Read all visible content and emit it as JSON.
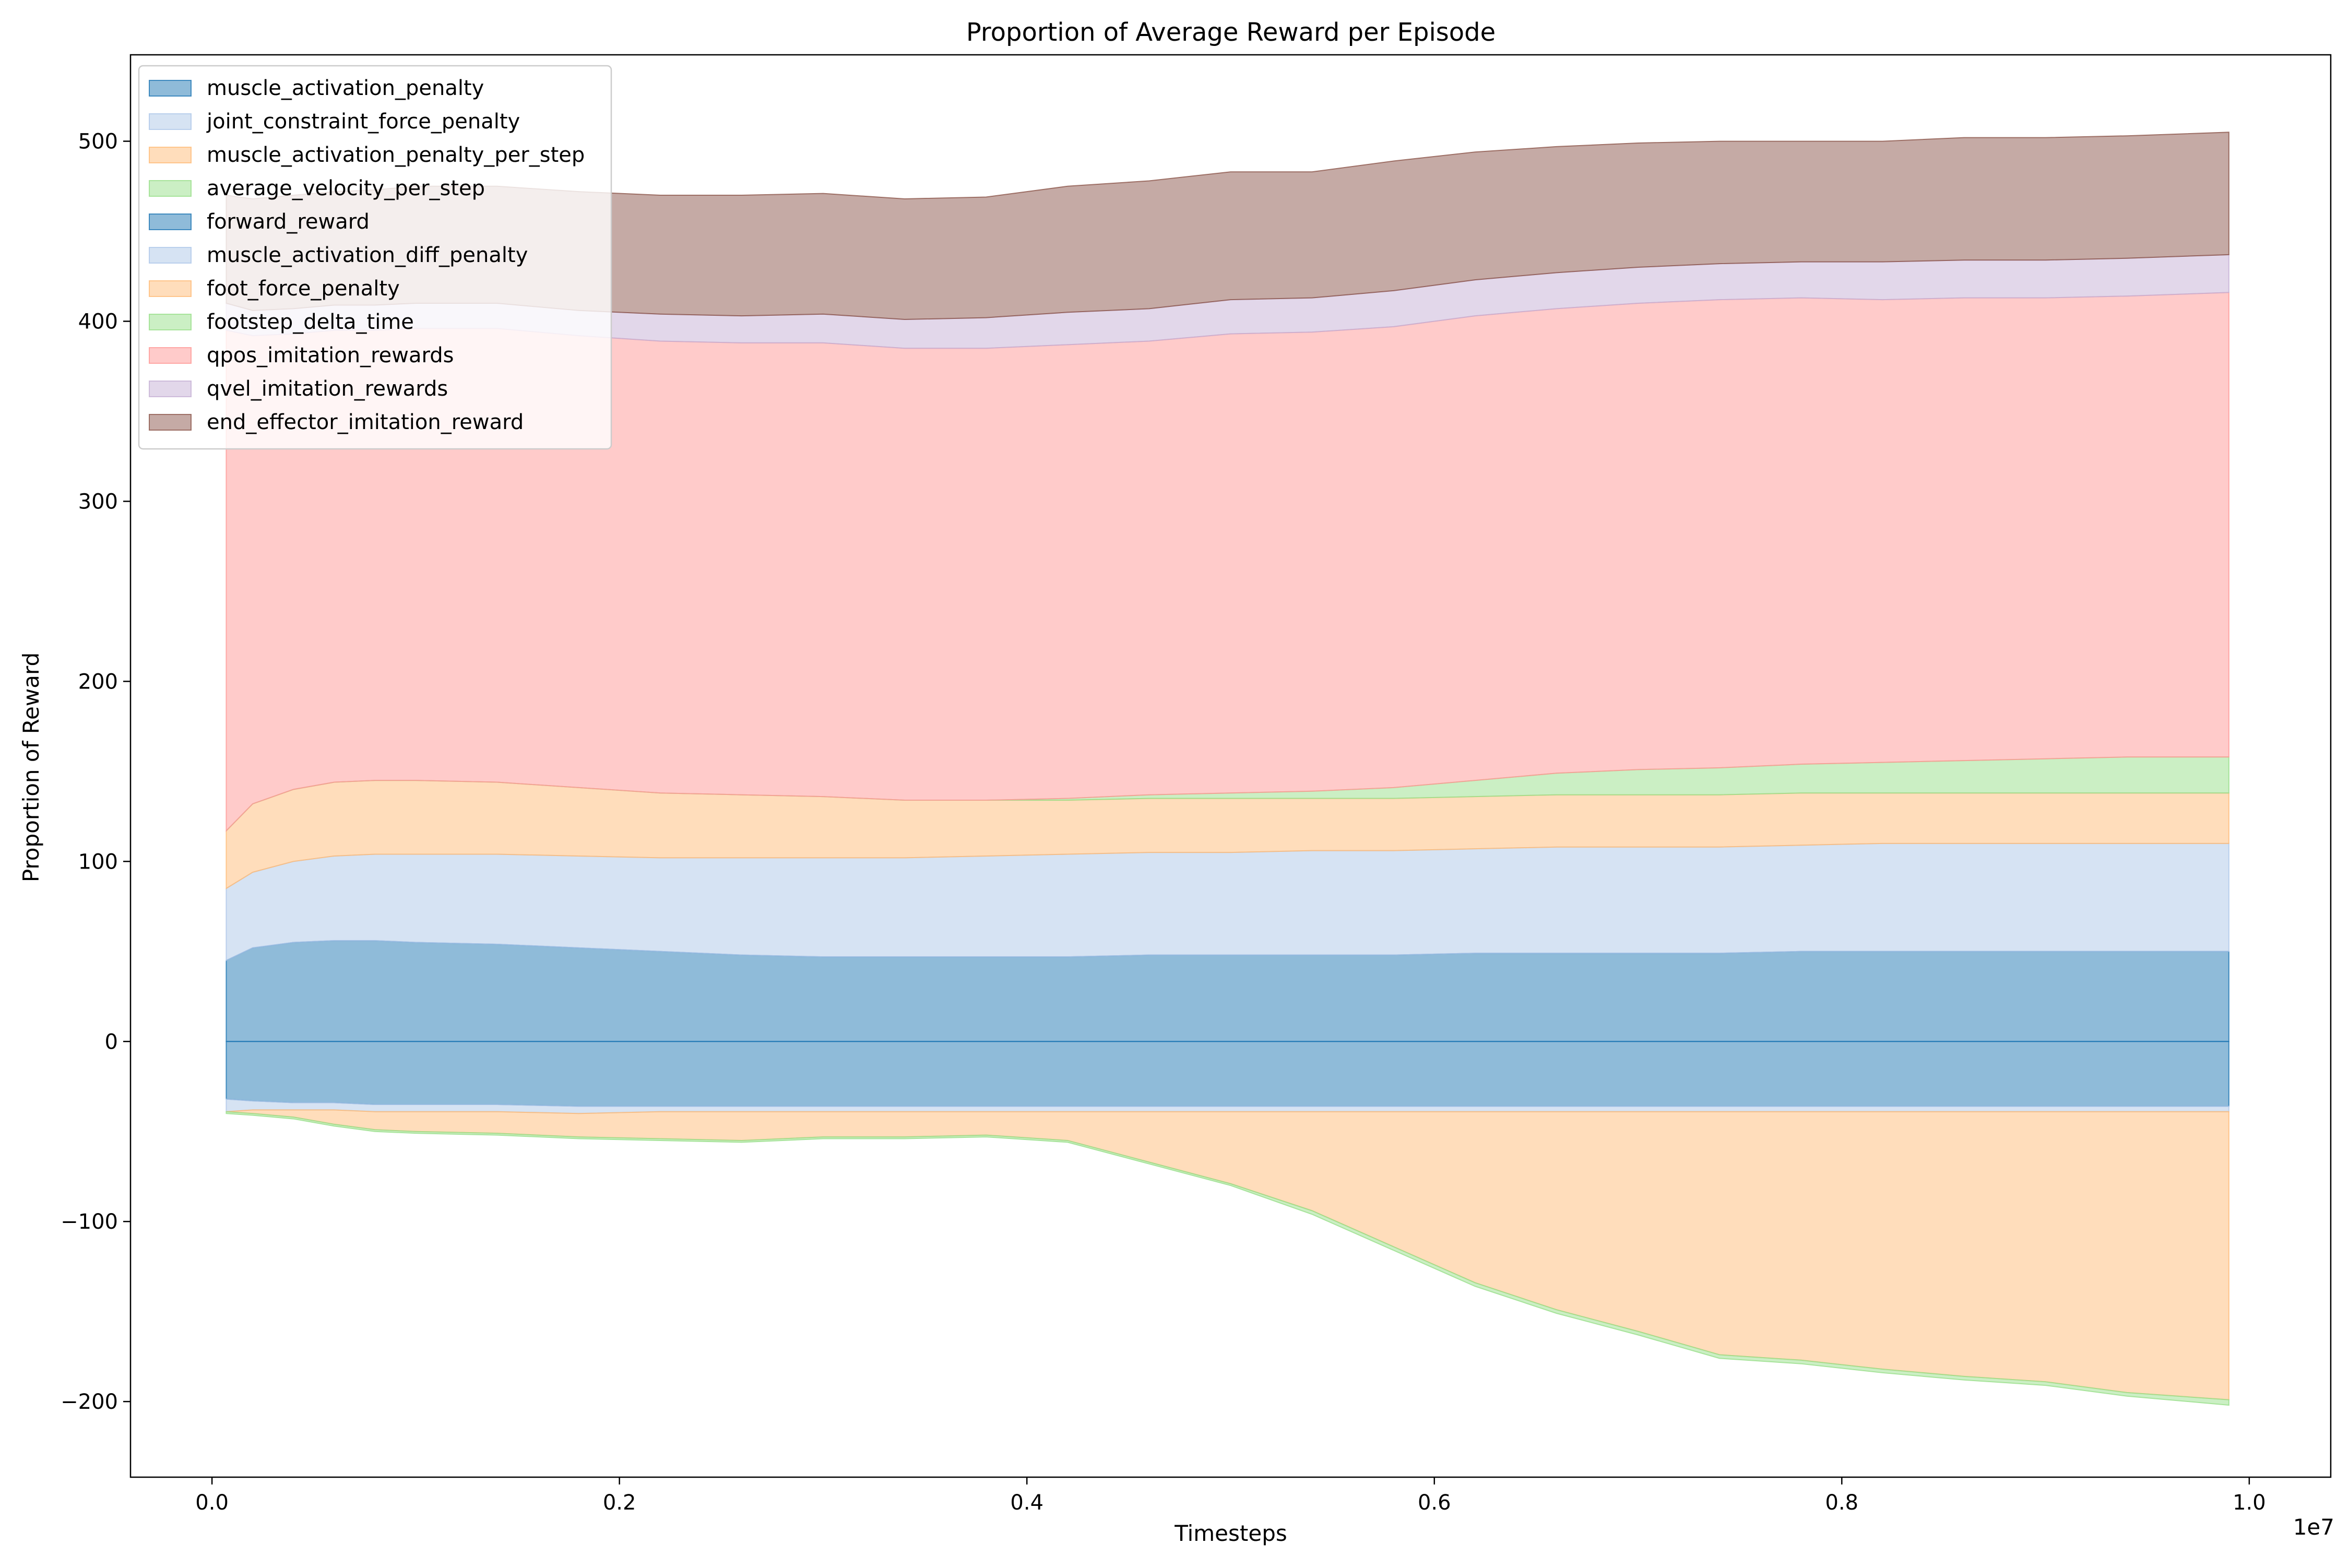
{
  "chart_data": {
    "type": "area",
    "title": "Proportion of Average Reward per Episode",
    "xlabel": "Timesteps",
    "ylabel": "Proportion of Reward",
    "x_offset_label": "1e7",
    "xlim": [
      -0.04,
      1.04
    ],
    "ylim": [
      -242,
      548
    ],
    "x_ticks": [
      0.0,
      0.2,
      0.4,
      0.6,
      0.8,
      1.0
    ],
    "x_tick_labels": [
      "0.0",
      "0.2",
      "0.4",
      "0.6",
      "0.8",
      "1.0"
    ],
    "y_ticks": [
      -200,
      -100,
      0,
      100,
      200,
      300,
      400,
      500
    ],
    "y_tick_labels": [
      "−200",
      "−100",
      "0",
      "100",
      "200",
      "300",
      "400",
      "500"
    ],
    "grid": false,
    "legend_position": "top-left",
    "x": [
      0.007,
      0.02,
      0.04,
      0.06,
      0.08,
      0.1,
      0.14,
      0.18,
      0.22,
      0.26,
      0.3,
      0.34,
      0.38,
      0.42,
      0.46,
      0.5,
      0.54,
      0.58,
      0.62,
      0.66,
      0.7,
      0.74,
      0.78,
      0.82,
      0.86,
      0.9,
      0.94,
      0.99
    ],
    "negative_stack": {
      "series": [
        {
          "name": "muscle_activation_penalty",
          "color": "#1f77b4",
          "values": [
            -32,
            -33,
            -34,
            -34,
            -35,
            -35,
            -35,
            -36,
            -36,
            -36,
            -36,
            -36,
            -36,
            -36,
            -36,
            -36,
            -36,
            -36,
            -36,
            -36,
            -36,
            -36,
            -36,
            -36,
            -36,
            -36,
            -36,
            -36
          ]
        },
        {
          "name": "joint_constraint_force_penalty",
          "color": "#aec7e8",
          "values": [
            -7,
            -5,
            -4,
            -4,
            -4,
            -4,
            -4,
            -4,
            -3,
            -3,
            -3,
            -3,
            -3,
            -3,
            -3,
            -3,
            -3,
            -3,
            -3,
            -3,
            -3,
            -3,
            -3,
            -3,
            -3,
            -3,
            -3,
            -3
          ]
        },
        {
          "name": "muscle_activation_penalty_per_step",
          "color": "#ffbb78",
          "values": [
            0,
            -2,
            -4,
            -8,
            -10,
            -11,
            -12,
            -13,
            -15,
            -16,
            -14,
            -14,
            -13,
            -16,
            -28,
            -40,
            -55,
            -75,
            -95,
            -110,
            -122,
            -135,
            -138,
            -143,
            -147,
            -150,
            -156,
            -160
          ]
        },
        {
          "name": "average_velocity_per_step",
          "color": "#98df8a",
          "values": [
            -1,
            -1,
            -1,
            -1,
            -1,
            -1,
            -1,
            -1,
            -1,
            -1,
            -1,
            -1,
            -1,
            -1,
            -1,
            -1,
            -2,
            -2,
            -2,
            -2,
            -2,
            -2,
            -2,
            -2,
            -2,
            -2,
            -2,
            -3
          ]
        }
      ]
    },
    "positive_stack": {
      "series": [
        {
          "name": "forward_reward",
          "color": "#1f77b4",
          "values": [
            45,
            52,
            55,
            56,
            56,
            55,
            54,
            52,
            50,
            48,
            47,
            47,
            47,
            47,
            48,
            48,
            48,
            48,
            49,
            49,
            49,
            49,
            50,
            50,
            50,
            50,
            50,
            50
          ]
        },
        {
          "name": "muscle_activation_diff_penalty",
          "color": "#aec7e8",
          "values": [
            40,
            42,
            45,
            47,
            48,
            49,
            50,
            51,
            52,
            54,
            55,
            55,
            56,
            57,
            57,
            57,
            58,
            58,
            58,
            59,
            59,
            59,
            59,
            60,
            60,
            60,
            60,
            60
          ]
        },
        {
          "name": "foot_force_penalty",
          "color": "#ffbb78",
          "values": [
            32,
            38,
            40,
            41,
            41,
            41,
            40,
            38,
            36,
            35,
            34,
            32,
            31,
            30,
            30,
            30,
            29,
            29,
            29,
            29,
            29,
            29,
            29,
            28,
            28,
            28,
            28,
            28
          ]
        },
        {
          "name": "footstep_delta_time",
          "color": "#98df8a",
          "values": [
            0,
            0,
            0,
            0,
            0,
            0,
            0,
            0,
            0,
            0,
            0,
            0,
            0,
            1,
            2,
            3,
            4,
            6,
            9,
            12,
            14,
            15,
            16,
            17,
            18,
            19,
            20,
            20
          ]
        },
        {
          "name": "qpos_imitation_rewards",
          "color": "#ff9896",
          "values": [
            278,
            260,
            253,
            251,
            250,
            251,
            252,
            251,
            251,
            251,
            252,
            251,
            251,
            252,
            252,
            255,
            255,
            256,
            258,
            258,
            259,
            260,
            259,
            257,
            257,
            256,
            256,
            258
          ]
        },
        {
          "name": "qvel_imitation_rewards",
          "color": "#c5b0d5",
          "values": [
            15,
            14,
            14,
            14,
            14,
            14,
            14,
            14,
            15,
            15,
            16,
            16,
            17,
            18,
            18,
            19,
            19,
            20,
            20,
            20,
            20,
            20,
            20,
            21,
            21,
            21,
            21,
            21
          ]
        },
        {
          "name": "end_effector_imitation_reward",
          "color": "#8c564b",
          "values": [
            60,
            62,
            63,
            63,
            64,
            65,
            65,
            66,
            66,
            67,
            67,
            67,
            67,
            70,
            71,
            71,
            70,
            72,
            71,
            70,
            69,
            68,
            67,
            67,
            68,
            68,
            68,
            68
          ]
        }
      ]
    },
    "legend": [
      {
        "label": "muscle_activation_penalty",
        "color": "#1f77b4"
      },
      {
        "label": "joint_constraint_force_penalty",
        "color": "#aec7e8"
      },
      {
        "label": "muscle_activation_penalty_per_step",
        "color": "#ffbb78"
      },
      {
        "label": "average_velocity_per_step",
        "color": "#98df8a"
      },
      {
        "label": "forward_reward",
        "color": "#1f77b4"
      },
      {
        "label": "muscle_activation_diff_penalty",
        "color": "#aec7e8"
      },
      {
        "label": "foot_force_penalty",
        "color": "#ffbb78"
      },
      {
        "label": "footstep_delta_time",
        "color": "#98df8a"
      },
      {
        "label": "qpos_imitation_rewards",
        "color": "#ff9896"
      },
      {
        "label": "qvel_imitation_rewards",
        "color": "#c5b0d5"
      },
      {
        "label": "end_effector_imitation_reward",
        "color": "#8c564b"
      }
    ]
  }
}
